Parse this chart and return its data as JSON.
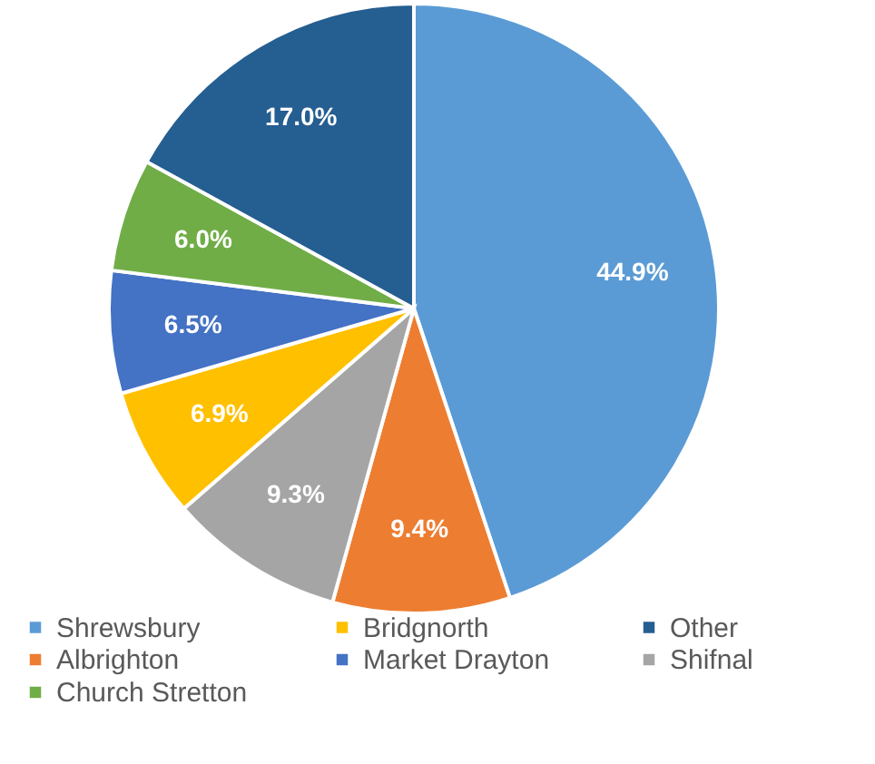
{
  "chart_data": {
    "type": "pie",
    "categories": [
      "Shrewsbury",
      "Albrighton",
      "Shifnal",
      "Bridgnorth",
      "Market Drayton",
      "Church Stretton",
      "Other"
    ],
    "values": [
      44.9,
      9.4,
      9.3,
      6.9,
      6.5,
      6.0,
      17.0
    ],
    "value_labels": [
      "44.9%",
      "9.4%",
      "9.3%",
      "6.9%",
      "6.5%",
      "6.0%",
      "17.0%"
    ],
    "colors": [
      "#5b9bd5",
      "#ed7d31",
      "#a5a5a5",
      "#ffc000",
      "#4472c4",
      "#70ad47",
      "#255e91"
    ],
    "legend": "bottom"
  }
}
